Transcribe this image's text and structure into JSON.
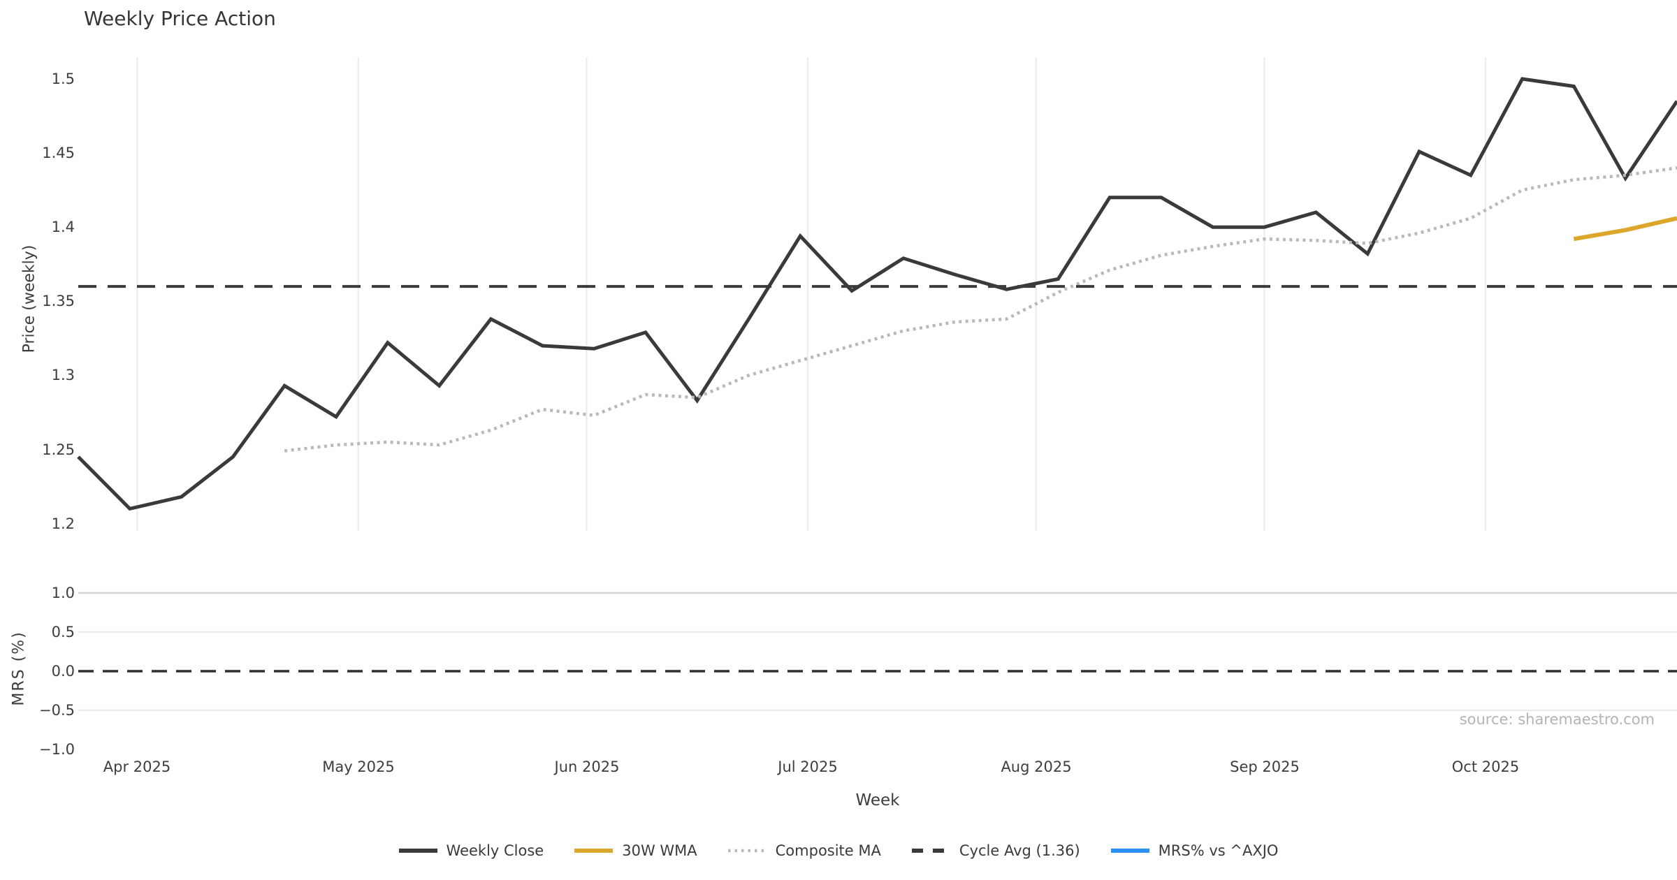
{
  "source": "source: sharemaestro.com",
  "chart_data": {
    "type": "line",
    "title": "Weekly Price Action",
    "xlabel": "Week",
    "x_tick_labels": [
      "Apr 2025",
      "May 2025",
      "Jun 2025",
      "Jul 2025",
      "Aug 2025",
      "Sep 2025",
      "Oct 2025"
    ],
    "weeks": [
      "2025-03-24",
      "2025-03-31",
      "2025-04-07",
      "2025-04-14",
      "2025-04-21",
      "2025-04-28",
      "2025-05-05",
      "2025-05-12",
      "2025-05-19",
      "2025-05-26",
      "2025-06-02",
      "2025-06-09",
      "2025-06-16",
      "2025-06-23",
      "2025-06-30",
      "2025-07-07",
      "2025-07-14",
      "2025-07-21",
      "2025-07-28",
      "2025-08-04",
      "2025-08-11",
      "2025-08-18",
      "2025-08-25",
      "2025-09-01",
      "2025-09-08",
      "2025-09-15",
      "2025-09-22",
      "2025-09-29",
      "2025-10-06",
      "2025-10-13",
      "2025-10-20",
      "2025-10-27"
    ],
    "top_panel": {
      "ylabel": "Price (weekly)",
      "ylim": [
        1.195,
        1.515
      ],
      "yticks": [
        1.2,
        1.25,
        1.3,
        1.35,
        1.4,
        1.45,
        1.5
      ],
      "ytick_labels": [
        "1.2",
        "1.25",
        "1.3",
        "1.35",
        "1.4",
        "1.45",
        "1.5"
      ],
      "grid": "vertical-months",
      "series": [
        {
          "name": "Weekly Close",
          "style": "solid",
          "color": "#3a3a3a",
          "width": 5,
          "start_index": 0,
          "values": [
            1.245,
            1.21,
            1.218,
            1.245,
            1.293,
            1.272,
            1.322,
            1.293,
            1.338,
            1.32,
            1.318,
            1.329,
            1.283,
            1.338,
            1.394,
            1.357,
            1.379,
            1.368,
            1.358,
            1.365,
            1.42,
            1.42,
            1.4,
            1.4,
            1.41,
            1.382,
            1.451,
            1.435,
            1.5,
            1.495,
            1.433,
            1.485
          ]
        },
        {
          "name": "Composite MA",
          "style": "dotted",
          "color": "#b9b9b9",
          "width": 4.5,
          "start_index": 4,
          "values": [
            1.249,
            1.253,
            1.255,
            1.253,
            1.263,
            1.277,
            1.273,
            1.287,
            1.285,
            1.3,
            1.31,
            1.32,
            1.33,
            1.336,
            1.338,
            1.356,
            1.371,
            1.381,
            1.387,
            1.392,
            1.391,
            1.389,
            1.396,
            1.406,
            1.425,
            1.432,
            1.435,
            1.44
          ]
        },
        {
          "name": "30W WMA",
          "style": "solid",
          "color": "#dca62a",
          "width": 6,
          "start_index": 29,
          "values": [
            1.392,
            1.398,
            1.406
          ]
        },
        {
          "name": "Cycle Avg (1.36)",
          "style": "dashed",
          "color": "#3a3a3a",
          "width": 4,
          "value": 1.36
        }
      ]
    },
    "bottom_panel": {
      "ylabel": "MRS (%)",
      "ylim": [
        -1.1,
        1.1
      ],
      "yticks": [
        1.0,
        0.5,
        0.0,
        -0.5,
        -1.0
      ],
      "ytick_labels": [
        "1.0",
        "0.5",
        "0.0",
        "−0.5",
        "−1.0"
      ],
      "grid": "horizontal",
      "zero_line": {
        "style": "dashed",
        "color": "#2f2f2f",
        "value": 0.0
      },
      "series": [
        {
          "name": "MRS% vs ^AXJO",
          "style": "solid",
          "color": "#2a90f5",
          "visible": false,
          "values": []
        }
      ]
    },
    "legend": [
      {
        "label": "Weekly Close",
        "color": "#3a3a3a",
        "style": "solid"
      },
      {
        "label": "30W WMA",
        "color": "#dca62a",
        "style": "solid"
      },
      {
        "label": "Composite MA",
        "color": "#b9b9b9",
        "style": "dotted"
      },
      {
        "label": "Cycle Avg (1.36)",
        "color": "#3a3a3a",
        "style": "dashed"
      },
      {
        "label": "MRS% vs ^AXJO",
        "color": "#2a90f5",
        "style": "solid"
      }
    ],
    "legend_position": "bottom-center"
  }
}
